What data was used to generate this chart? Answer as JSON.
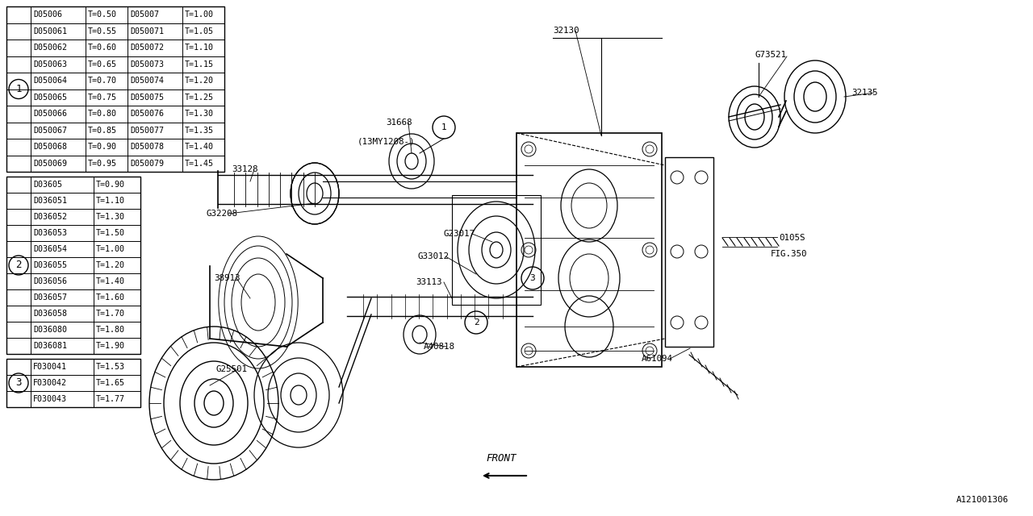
{
  "bg_color": "#ffffff",
  "lc": "#000000",
  "figsize": [
    12.8,
    6.4
  ],
  "dpi": 100,
  "table1_rows": [
    [
      "D05006",
      "T=0.50",
      "D05007",
      "T=1.00"
    ],
    [
      "D050061",
      "T=0.55",
      "D050071",
      "T=1.05"
    ],
    [
      "D050062",
      "T=0.60",
      "D050072",
      "T=1.10"
    ],
    [
      "D050063",
      "T=0.65",
      "D050073",
      "T=1.15"
    ],
    [
      "D050064",
      "T=0.70",
      "D050074",
      "T=1.20"
    ],
    [
      "D050065",
      "T=0.75",
      "D050075",
      "T=1.25"
    ],
    [
      "D050066",
      "T=0.80",
      "D050076",
      "T=1.30"
    ],
    [
      "D050067",
      "T=0.85",
      "D050077",
      "T=1.35"
    ],
    [
      "D050068",
      "T=0.90",
      "D050078",
      "T=1.40"
    ],
    [
      "D050069",
      "T=0.95",
      "D050079",
      "T=1.45"
    ]
  ],
  "table2_rows": [
    [
      "D03605",
      "T=0.90"
    ],
    [
      "D036051",
      "T=1.10"
    ],
    [
      "D036052",
      "T=1.30"
    ],
    [
      "D036053",
      "T=1.50"
    ],
    [
      "D036054",
      "T=1.00"
    ],
    [
      "D036055",
      "T=1.20"
    ],
    [
      "D036056",
      "T=1.40"
    ],
    [
      "D036057",
      "T=1.60"
    ],
    [
      "D036058",
      "T=1.70"
    ],
    [
      "D036080",
      "T=1.80"
    ],
    [
      "D036081",
      "T=1.90"
    ]
  ],
  "table3_rows": [
    [
      "F030041",
      "T=1.53"
    ],
    [
      "F030042",
      "T=1.65"
    ],
    [
      "F030043",
      "T=1.77"
    ]
  ]
}
